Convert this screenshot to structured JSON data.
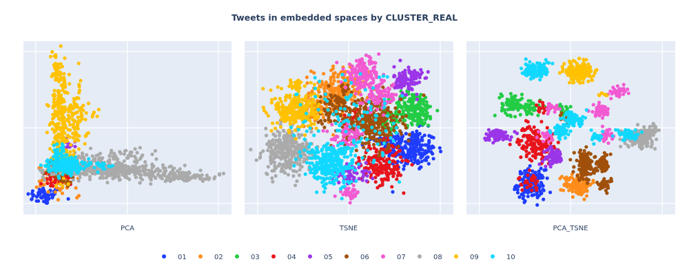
{
  "chart_data": {
    "type": "scatter",
    "title": "Tweets in embedded spaces by CLUSTER_REAL",
    "grid": true,
    "legend_placement": "bottom",
    "panels": [
      {
        "xlabel": "PCA",
        "xlim": [
          -0.1,
          1.1
        ],
        "ylim": [
          -0.1,
          1.1
        ]
      },
      {
        "xlabel": "TSNE",
        "xlim": [
          -0.1,
          1.1
        ],
        "ylim": [
          -0.1,
          1.1
        ]
      },
      {
        "xlabel": "PCA_TSNE",
        "xlim": [
          -0.1,
          1.1
        ],
        "ylim": [
          -0.1,
          1.1
        ]
      }
    ],
    "series": [
      {
        "name": "01",
        "color": "#1f3cff",
        "clusters": [
          [
            [
              0.02,
              0.03,
              0.05,
              0.03,
              50
            ],
            [
              0.12,
              0.18,
              0.04,
              0.03,
              15
            ]
          ],
          [
            [
              0.86,
              0.35,
              0.07,
              0.07,
              200
            ],
            [
              0.75,
              0.42,
              0.05,
              0.04,
              60
            ]
          ],
          [
            [
              0.27,
              0.11,
              0.04,
              0.05,
              160
            ]
          ]
        ]
      },
      {
        "name": "02",
        "color": "#ff8c1a",
        "clusters": [
          [
            [
              0.1,
              0.14,
              0.06,
              0.05,
              60
            ],
            [
              0.22,
              0.02,
              0.01,
              0.01,
              2
            ]
          ],
          [
            [
              0.45,
              0.76,
              0.08,
              0.08,
              220
            ],
            [
              0.32,
              0.62,
              0.05,
              0.05,
              60
            ]
          ],
          [
            [
              0.54,
              0.11,
              0.04,
              0.04,
              120
            ]
          ]
        ]
      },
      {
        "name": "03",
        "color": "#22cc44",
        "clusters": [
          [
            [
              0.09,
              0.24,
              0.03,
              0.03,
              12
            ]
          ],
          [
            [
              0.87,
              0.63,
              0.06,
              0.06,
              200
            ],
            [
              0.72,
              0.55,
              0.05,
              0.05,
              50
            ]
          ],
          [
            [
              0.16,
              0.67,
              0.03,
              0.04,
              60
            ],
            [
              0.28,
              0.64,
              0.04,
              0.02,
              45
            ],
            [
              0.46,
              0.62,
              0.02,
              0.02,
              12
            ]
          ]
        ]
      },
      {
        "name": "04",
        "color": "#e8141c",
        "clusters": [
          [
            [
              0.08,
              0.16,
              0.04,
              0.04,
              40
            ]
          ],
          [
            [
              0.69,
              0.25,
              0.06,
              0.07,
              200
            ],
            [
              0.55,
              0.55,
              0.05,
              0.05,
              60
            ]
          ],
          [
            [
              0.3,
              0.4,
              0.05,
              0.06,
              150
            ],
            [
              0.26,
              0.12,
              0.03,
              0.03,
              30
            ],
            [
              0.34,
              0.65,
              0.02,
              0.02,
              15
            ]
          ]
        ]
      },
      {
        "name": "05",
        "color": "#9b35e8",
        "clusters": [
          [
            [
              0.15,
              0.38,
              0.03,
              0.03,
              10
            ]
          ],
          [
            [
              0.84,
              0.83,
              0.04,
              0.05,
              120
            ],
            [
              0.52,
              0.18,
              0.05,
              0.04,
              60
            ]
          ],
          [
            [
              0.08,
              0.45,
              0.04,
              0.02,
              80
            ],
            [
              0.4,
              0.3,
              0.03,
              0.03,
              60
            ]
          ]
        ]
      },
      {
        "name": "06",
        "color": "#a0500a",
        "clusters": [
          [
            [
              0.11,
              0.2,
              0.04,
              0.04,
              40
            ]
          ],
          [
            [
              0.64,
              0.53,
              0.08,
              0.09,
              280
            ],
            [
              0.42,
              0.65,
              0.07,
              0.07,
              100
            ]
          ],
          [
            [
              0.58,
              0.24,
              0.03,
              0.05,
              130
            ],
            [
              0.69,
              0.25,
              0.02,
              0.03,
              60
            ],
            [
              0.69,
              0.11,
              0.02,
              0.02,
              35
            ],
            [
              0.47,
              0.56,
              0.02,
              0.02,
              12
            ]
          ]
        ]
      },
      {
        "name": "07",
        "color": "#f25ad2",
        "clusters": [
          [
            [
              0.12,
              0.3,
              0.03,
              0.03,
              10
            ]
          ],
          [
            [
              0.58,
              0.87,
              0.05,
              0.05,
              150
            ],
            [
              0.68,
              0.72,
              0.05,
              0.05,
              80
            ],
            [
              0.5,
              0.43,
              0.05,
              0.04,
              60
            ],
            [
              0.5,
              0.05,
              0.03,
              0.02,
              30
            ]
          ],
          [
            [
              0.67,
              0.62,
              0.03,
              0.02,
              60
            ],
            [
              0.78,
              0.75,
              0.02,
              0.02,
              35
            ],
            [
              0.7,
              0.45,
              0.02,
              0.02,
              30
            ],
            [
              0.4,
              0.63,
              0.02,
              0.02,
              20
            ],
            [
              0.36,
              0.45,
              0.02,
              0.02,
              20
            ]
          ]
        ]
      },
      {
        "name": "08",
        "color": "#aaaaaa",
        "clusters": [
          [
            [
              0.45,
              0.2,
              0.18,
              0.025,
              300
            ],
            [
              0.3,
              0.25,
              0.08,
              0.04,
              120
            ],
            [
              0.85,
              0.16,
              0.1,
              0.015,
              80
            ],
            [
              0.5,
              0.3,
              0.08,
              0.03,
              40
            ]
          ],
          [
            [
              0.15,
              0.33,
              0.07,
              0.08,
              300
            ]
          ],
          [
            [
              0.89,
              0.43,
              0.04,
              0.03,
              150
            ],
            [
              0.96,
              0.48,
              0.02,
              0.02,
              40
            ]
          ]
        ]
      },
      {
        "name": "09",
        "color": "#ffc100",
        "clusters": [
          [
            [
              0.11,
              0.6,
              0.025,
              0.18,
              200
            ],
            [
              0.19,
              0.55,
              0.04,
              0.12,
              100
            ],
            [
              0.09,
              0.95,
              0.015,
              0.04,
              20
            ],
            [
              0.3,
              0.6,
              0.02,
              0.02,
              5
            ],
            [
              0.15,
              0.3,
              0.03,
              0.05,
              30
            ]
          ],
          [
            [
              0.2,
              0.62,
              0.06,
              0.07,
              260
            ],
            [
              0.2,
              0.8,
              0.02,
              0.02,
              30
            ]
          ],
          [
            [
              0.55,
              0.89,
              0.04,
              0.04,
              150
            ],
            [
              0.68,
              0.73,
              0.015,
              0.01,
              8
            ]
          ]
        ]
      },
      {
        "name": "10",
        "color": "#10d8ff",
        "clusters": [
          [
            [
              0.14,
              0.24,
              0.05,
              0.025,
              250
            ],
            [
              0.1,
              0.35,
              0.02,
              0.03,
              30
            ],
            [
              0.35,
              0.24,
              0.03,
              0.015,
              20
            ]
          ],
          [
            [
              0.39,
              0.25,
              0.07,
              0.07,
              300
            ],
            [
              0.5,
              0.5,
              0.15,
              0.2,
              120
            ]
          ],
          [
            [
              0.3,
              0.9,
              0.04,
              0.03,
              120
            ],
            [
              0.52,
              0.56,
              0.03,
              0.03,
              60
            ],
            [
              0.44,
              0.48,
              0.03,
              0.03,
              50
            ],
            [
              0.83,
              0.45,
              0.03,
              0.02,
              50
            ],
            [
              0.65,
              0.44,
              0.02,
              0.02,
              20
            ]
          ]
        ]
      }
    ]
  }
}
